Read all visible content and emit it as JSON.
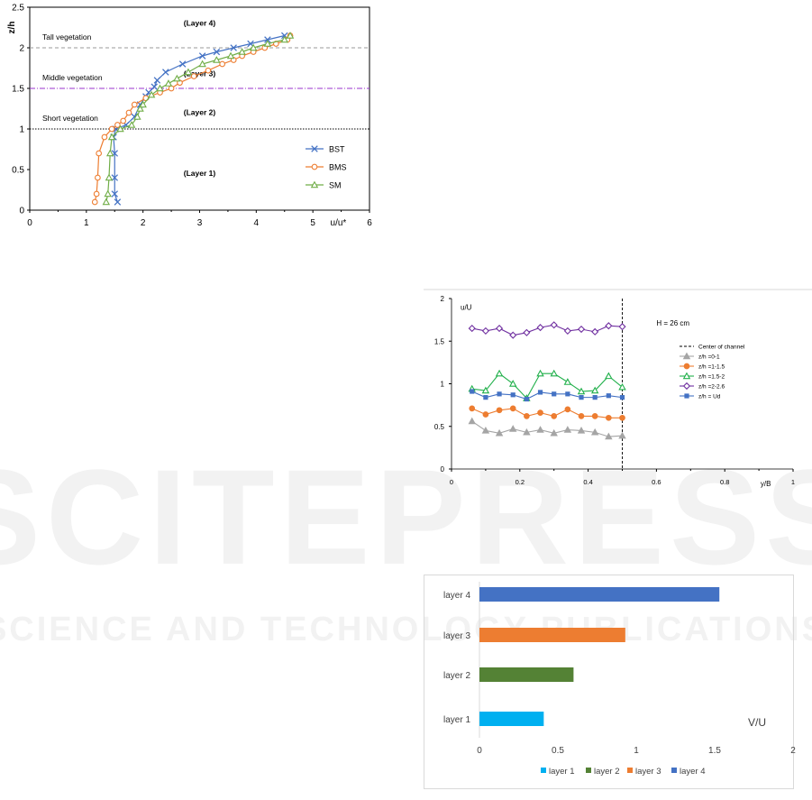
{
  "watermark": {
    "line1": "SCITEPRESS",
    "line2": "SCIENCE AND TECHNOLOGY PUBLICATIONS"
  },
  "chart_data": [
    {
      "type": "line",
      "xlabel": "u/u*",
      "ylabel": "z/h",
      "xlim": [
        0,
        6
      ],
      "ylim": [
        0,
        2.5
      ],
      "xticks": [
        "0",
        "1",
        "2",
        "3",
        "4",
        "5",
        "6"
      ],
      "yticks": [
        "0",
        "0.5",
        "1",
        "1.5",
        "2",
        "2.5"
      ],
      "hlines": [
        {
          "y": 2,
          "label": "Tall vegetation",
          "color": "#999999",
          "style": "dash"
        },
        {
          "y": 1.5,
          "label": "Middle vegetation",
          "color": "#9933cc",
          "style": "dashdot"
        },
        {
          "y": 1,
          "label": "Short vegetation",
          "color": "#000000",
          "style": "dot"
        }
      ],
      "annotations": [
        {
          "text": "(Layer 4)",
          "x": 3.0,
          "y": 2.27
        },
        {
          "text": "(Layer 3)",
          "x": 3.0,
          "y": 1.65
        },
        {
          "text": "(Layer 2)",
          "x": 3.0,
          "y": 1.17
        },
        {
          "text": "(Layer 1)",
          "x": 3.0,
          "y": 0.42
        }
      ],
      "legend_position": "right",
      "series": [
        {
          "name": "BST",
          "color": "#4472c4",
          "marker": "x",
          "x": [
            1.55,
            1.5,
            1.5,
            1.5,
            1.48,
            1.52,
            1.7,
            1.85,
            1.95,
            2.05,
            2.1,
            2.2,
            2.25,
            2.4,
            2.7,
            3.05,
            3.3,
            3.6,
            3.9,
            4.2,
            4.5
          ],
          "y": [
            0.1,
            0.2,
            0.4,
            0.7,
            0.9,
            1.0,
            1.05,
            1.15,
            1.3,
            1.4,
            1.45,
            1.52,
            1.6,
            1.7,
            1.8,
            1.9,
            1.95,
            2.0,
            2.05,
            2.1,
            2.15
          ]
        },
        {
          "name": "BMS",
          "color": "#ed7d31",
          "marker": "o",
          "x": [
            1.15,
            1.18,
            1.2,
            1.22,
            1.32,
            1.45,
            1.55,
            1.65,
            1.75,
            1.85,
            2.05,
            2.3,
            2.5,
            2.65,
            2.9,
            3.15,
            3.4,
            3.6,
            3.75,
            3.95,
            4.15,
            4.35,
            4.55,
            4.6
          ],
          "y": [
            0.1,
            0.2,
            0.4,
            0.7,
            0.9,
            1.0,
            1.05,
            1.1,
            1.2,
            1.3,
            1.38,
            1.45,
            1.5,
            1.57,
            1.65,
            1.72,
            1.8,
            1.85,
            1.9,
            1.95,
            2.0,
            2.05,
            2.1,
            2.15
          ]
        },
        {
          "name": "SM",
          "color": "#70ad47",
          "marker": "triangle",
          "x": [
            1.35,
            1.38,
            1.4,
            1.42,
            1.45,
            1.6,
            1.8,
            1.9,
            1.95,
            2.0,
            2.15,
            2.3,
            2.45,
            2.6,
            2.8,
            3.05,
            3.3,
            3.55,
            3.75,
            3.95,
            4.2,
            4.5,
            4.6
          ],
          "y": [
            0.1,
            0.2,
            0.4,
            0.7,
            0.9,
            1.0,
            1.05,
            1.15,
            1.25,
            1.3,
            1.42,
            1.5,
            1.56,
            1.62,
            1.7,
            1.8,
            1.85,
            1.9,
            1.95,
            2.0,
            2.05,
            2.1,
            2.15
          ]
        }
      ]
    },
    {
      "type": "line",
      "xlabel": "y/B",
      "ylabel": "u/U",
      "xlim": [
        0,
        1
      ],
      "ylim": [
        0,
        2
      ],
      "xticks": [
        "0",
        "0.2",
        "0.4",
        "0.6",
        "0.8",
        "1"
      ],
      "yticks": [
        "0",
        "0.5",
        "1",
        "1.5",
        "2"
      ],
      "annotations": [
        {
          "text": "H = 26 cm"
        }
      ],
      "vline": {
        "x": 0.5,
        "label": "Center of channel"
      },
      "legend_position": "right",
      "x": [
        0.06,
        0.1,
        0.14,
        0.18,
        0.22,
        0.26,
        0.3,
        0.34,
        0.38,
        0.42,
        0.46,
        0.5
      ],
      "series": [
        {
          "name": "z/h =0-1",
          "color": "#a5a5a5",
          "marker": "triangle-filled",
          "values": [
            0.56,
            0.45,
            0.42,
            0.47,
            0.43,
            0.46,
            0.42,
            0.46,
            0.45,
            0.43,
            0.38,
            0.39
          ]
        },
        {
          "name": "z/h =1-1.5",
          "color": "#ed7d31",
          "marker": "circle-filled",
          "values": [
            0.71,
            0.64,
            0.69,
            0.71,
            0.62,
            0.66,
            0.62,
            0.7,
            0.62,
            0.62,
            0.6,
            0.6
          ]
        },
        {
          "name": "z/h =1.5-2",
          "color": "#21b04b",
          "marker": "triangle",
          "values": [
            0.94,
            0.92,
            1.12,
            1.0,
            0.83,
            1.12,
            1.12,
            1.02,
            0.91,
            0.92,
            1.09,
            0.96
          ]
        },
        {
          "name": "z/h =2-2.6",
          "color": "#7030a0",
          "marker": "diamond",
          "values": [
            1.65,
            1.62,
            1.65,
            1.57,
            1.6,
            1.66,
            1.69,
            1.62,
            1.64,
            1.61,
            1.68,
            1.67
          ]
        },
        {
          "name": "z/h = Ud",
          "color": "#4472c4",
          "marker": "square-filled",
          "values": [
            0.91,
            0.84,
            0.88,
            0.87,
            0.82,
            0.9,
            0.88,
            0.88,
            0.84,
            0.84,
            0.86,
            0.84
          ]
        }
      ]
    },
    {
      "type": "bar",
      "orientation": "horizontal",
      "annotation": "V/U",
      "xlim": [
        0,
        2
      ],
      "xticks": [
        "0",
        "0.5",
        "1",
        "1.5",
        "2"
      ],
      "legend_position": "bottom",
      "categories": [
        "layer 1",
        "layer 2",
        "layer 3",
        "layer 4"
      ],
      "values": [
        0.41,
        0.6,
        0.93,
        1.53
      ],
      "colors": [
        "#00b0f0",
        "#548235",
        "#ed7d31",
        "#4472c4"
      ]
    }
  ]
}
